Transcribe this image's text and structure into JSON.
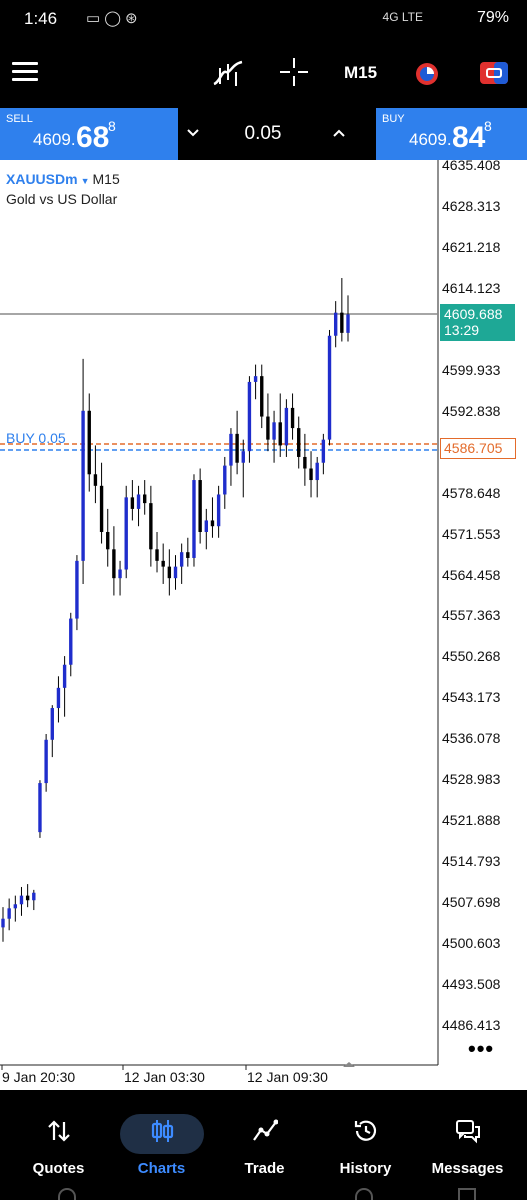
{
  "status": {
    "time": "1:46",
    "notif_icons": [
      "message-icon",
      "whatsapp-icon",
      "accessibility-icon"
    ],
    "network": "4G LTE",
    "battery": "79%"
  },
  "toolbar": {
    "timeframe": "M15",
    "icons": [
      "menu-icon",
      "indicators-icon",
      "crosshair-icon",
      "clock-icon",
      "trade-icon"
    ]
  },
  "sell": {
    "label": "SELL",
    "price_prefix": "4609.",
    "price_big": "68",
    "price_sup": "8"
  },
  "buy": {
    "label": "BUY",
    "price_prefix": "4609.",
    "price_big": "84",
    "price_sup": "8"
  },
  "volume": "0.05",
  "chart": {
    "symbol": "XAUUSDm",
    "timeframe": "M15",
    "description": "Gold vs US Dollar",
    "current_price": "4609.688",
    "countdown": "13:29",
    "order_price": "4586.705",
    "order_label": "BUY 0.05",
    "more": "•••",
    "colors": {
      "bull": "#1f2dcc",
      "bear": "#000000",
      "price_tag": "#1ea896",
      "order_line": "#e36b2b",
      "sl_line": "#2f80ed"
    }
  },
  "chart_data": {
    "type": "candlestick",
    "y_ticks": [
      "4635.408",
      "4628.313",
      "4621.218",
      "4614.123",
      "4599.933",
      "4592.838",
      "4578.648",
      "4571.553",
      "4564.458",
      "4557.363",
      "4550.268",
      "4543.173",
      "4536.078",
      "4528.983",
      "4521.888",
      "4514.793",
      "4507.698",
      "4500.603",
      "4493.508",
      "4486.413"
    ],
    "x_ticks": [
      "9 Jan 20:30",
      "12 Jan 03:30",
      "12 Jan 09:30"
    ],
    "ylim": [
      4482.9,
      4638.9
    ],
    "candles": [
      {
        "o": 4503.5,
        "h": 4507.0,
        "l": 4501.0,
        "c": 4505.0
      },
      {
        "o": 4505.0,
        "h": 4508.5,
        "l": 4503.0,
        "c": 4506.8
      },
      {
        "o": 4506.8,
        "h": 4509.0,
        "l": 4504.5,
        "c": 4507.5
      },
      {
        "o": 4507.5,
        "h": 4510.5,
        "l": 4505.5,
        "c": 4509.0
      },
      {
        "o": 4509.0,
        "h": 4511.0,
        "l": 4507.0,
        "c": 4508.2
      },
      {
        "o": 4508.2,
        "h": 4510.0,
        "l": 4506.5,
        "c": 4509.5
      },
      {
        "o": 4520.0,
        "h": 4529.0,
        "l": 4519.0,
        "c": 4528.5
      },
      {
        "o": 4528.5,
        "h": 4537.0,
        "l": 4527.0,
        "c": 4536.0
      },
      {
        "o": 4536.0,
        "h": 4542.0,
        "l": 4533.0,
        "c": 4541.5
      },
      {
        "o": 4541.5,
        "h": 4547.0,
        "l": 4539.0,
        "c": 4545.0
      },
      {
        "o": 4545.0,
        "h": 4550.5,
        "l": 4540.0,
        "c": 4549.0
      },
      {
        "o": 4549.0,
        "h": 4558.0,
        "l": 4547.0,
        "c": 4557.0
      },
      {
        "o": 4557.0,
        "h": 4568.0,
        "l": 4555.0,
        "c": 4567.0
      },
      {
        "o": 4567.0,
        "h": 4602.0,
        "l": 4563.0,
        "c": 4593.0
      },
      {
        "o": 4593.0,
        "h": 4596.0,
        "l": 4579.0,
        "c": 4582.0
      },
      {
        "o": 4582.0,
        "h": 4587.0,
        "l": 4577.0,
        "c": 4580.0
      },
      {
        "o": 4580.0,
        "h": 4584.0,
        "l": 4570.0,
        "c": 4572.0
      },
      {
        "o": 4572.0,
        "h": 4576.0,
        "l": 4566.0,
        "c": 4569.0
      },
      {
        "o": 4569.0,
        "h": 4573.0,
        "l": 4561.0,
        "c": 4564.0
      },
      {
        "o": 4564.0,
        "h": 4567.0,
        "l": 4561.0,
        "c": 4565.5
      },
      {
        "o": 4565.5,
        "h": 4580.0,
        "l": 4564.0,
        "c": 4578.0
      },
      {
        "o": 4578.0,
        "h": 4581.0,
        "l": 4574.0,
        "c": 4576.0
      },
      {
        "o": 4576.0,
        "h": 4580.0,
        "l": 4573.0,
        "c": 4578.5
      },
      {
        "o": 4578.5,
        "h": 4581.0,
        "l": 4575.0,
        "c": 4577.0
      },
      {
        "o": 4577.0,
        "h": 4580.0,
        "l": 4566.0,
        "c": 4569.0
      },
      {
        "o": 4569.0,
        "h": 4572.0,
        "l": 4565.0,
        "c": 4567.0
      },
      {
        "o": 4567.0,
        "h": 4570.0,
        "l": 4563.0,
        "c": 4566.0
      },
      {
        "o": 4566.0,
        "h": 4569.0,
        "l": 4561.0,
        "c": 4564.0
      },
      {
        "o": 4564.0,
        "h": 4568.0,
        "l": 4562.0,
        "c": 4566.0
      },
      {
        "o": 4566.0,
        "h": 4570.0,
        "l": 4563.0,
        "c": 4568.5
      },
      {
        "o": 4568.5,
        "h": 4571.0,
        "l": 4566.0,
        "c": 4567.5
      },
      {
        "o": 4567.5,
        "h": 4582.0,
        "l": 4566.0,
        "c": 4581.0
      },
      {
        "o": 4581.0,
        "h": 4583.0,
        "l": 4570.0,
        "c": 4572.0
      },
      {
        "o": 4572.0,
        "h": 4576.0,
        "l": 4569.0,
        "c": 4574.0
      },
      {
        "o": 4574.0,
        "h": 4578.0,
        "l": 4571.0,
        "c": 4573.0
      },
      {
        "o": 4573.0,
        "h": 4580.0,
        "l": 4571.0,
        "c": 4578.5
      },
      {
        "o": 4578.5,
        "h": 4585.0,
        "l": 4576.0,
        "c": 4583.5
      },
      {
        "o": 4583.5,
        "h": 4590.0,
        "l": 4580.0,
        "c": 4589.0
      },
      {
        "o": 4589.0,
        "h": 4593.0,
        "l": 4582.0,
        "c": 4584.0
      },
      {
        "o": 4584.0,
        "h": 4588.0,
        "l": 4578.0,
        "c": 4586.0
      },
      {
        "o": 4586.0,
        "h": 4599.0,
        "l": 4584.0,
        "c": 4598.0
      },
      {
        "o": 4598.0,
        "h": 4601.0,
        "l": 4595.0,
        "c": 4599.0
      },
      {
        "o": 4599.0,
        "h": 4601.0,
        "l": 4590.0,
        "c": 4592.0
      },
      {
        "o": 4592.0,
        "h": 4596.0,
        "l": 4586.0,
        "c": 4588.0
      },
      {
        "o": 4588.0,
        "h": 4593.0,
        "l": 4584.0,
        "c": 4591.0
      },
      {
        "o": 4591.0,
        "h": 4596.0,
        "l": 4585.0,
        "c": 4587.0
      },
      {
        "o": 4587.0,
        "h": 4595.0,
        "l": 4585.0,
        "c": 4593.5
      },
      {
        "o": 4593.5,
        "h": 4596.0,
        "l": 4588.0,
        "c": 4590.0
      },
      {
        "o": 4590.0,
        "h": 4592.0,
        "l": 4583.0,
        "c": 4585.0
      },
      {
        "o": 4585.0,
        "h": 4589.0,
        "l": 4580.0,
        "c": 4583.0
      },
      {
        "o": 4583.0,
        "h": 4586.0,
        "l": 4578.0,
        "c": 4581.0
      },
      {
        "o": 4581.0,
        "h": 4585.0,
        "l": 4578.0,
        "c": 4584.0
      },
      {
        "o": 4584.0,
        "h": 4589.0,
        "l": 4582.0,
        "c": 4588.0
      },
      {
        "o": 4588.0,
        "h": 4607.0,
        "l": 4587.0,
        "c": 4606.0
      },
      {
        "o": 4606.0,
        "h": 4612.0,
        "l": 4604.0,
        "c": 4610.0
      },
      {
        "o": 4610.0,
        "h": 4616.0,
        "l": 4605.0,
        "c": 4606.5
      },
      {
        "o": 4606.5,
        "h": 4613.0,
        "l": 4605.0,
        "c": 4609.7
      }
    ]
  },
  "nav": {
    "items": [
      {
        "label": "Quotes",
        "icon": "quotes-icon"
      },
      {
        "label": "Charts",
        "icon": "charts-icon",
        "active": true
      },
      {
        "label": "Trade",
        "icon": "trade-chart-icon"
      },
      {
        "label": "History",
        "icon": "history-icon"
      },
      {
        "label": "Messages",
        "icon": "messages-icon"
      }
    ]
  }
}
